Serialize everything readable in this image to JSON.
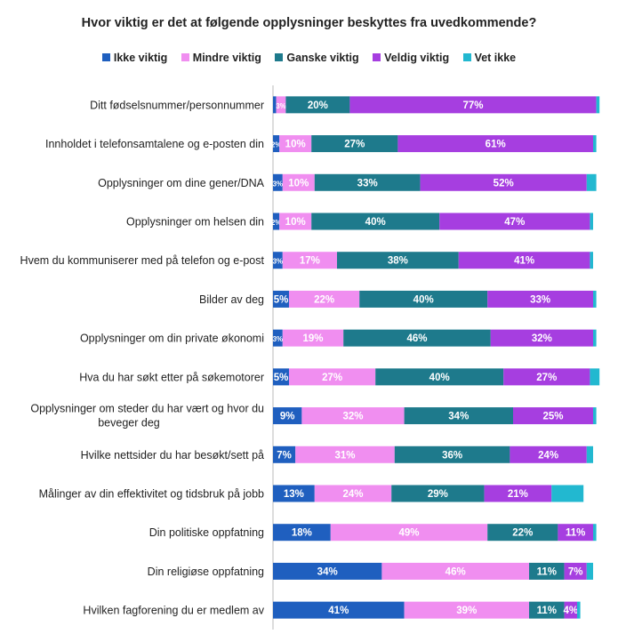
{
  "chart_data": {
    "type": "bar",
    "orientation": "horizontal",
    "stacked": true,
    "title": "Hvor viktig er det at følgende opplysninger beskyttes fra uvedkommende?",
    "legend_position": "top",
    "xlim": [
      0,
      100
    ],
    "categories": [
      "Ditt fødselsnummer/personnummer",
      "Innholdet i telefonsamtalene og e-posten din",
      "Opplysninger om dine gener/DNA",
      "Opplysninger om helsen din",
      "Hvem du kommuniserer med på telefon og e-post",
      "Bilder av deg",
      "Opplysninger om din private økonomi",
      "Hva du har søkt etter på søkemotorer",
      "Opplysninger om steder du har vært og hvor du beveger deg",
      "Hvilke nettsider du har besøkt/sett på",
      "Målinger av din effektivitet og tidsbruk på jobb",
      "Din politiske oppfatning",
      "Din religiøse oppfatning",
      "Hvilken fagforening du er medlem av"
    ],
    "series": [
      {
        "name": "Ikke viktig",
        "color": "#1f5fbf",
        "values": [
          1,
          2,
          3,
          2,
          3,
          5,
          3,
          5,
          9,
          7,
          13,
          18,
          34,
          41
        ]
      },
      {
        "name": "Mindre viktig",
        "color": "#f08ef0",
        "values": [
          3,
          10,
          10,
          10,
          17,
          22,
          19,
          27,
          32,
          31,
          24,
          49,
          46,
          39
        ]
      },
      {
        "name": "Ganske viktig",
        "color": "#1e7a8c",
        "values": [
          20,
          27,
          33,
          40,
          38,
          40,
          46,
          40,
          34,
          36,
          29,
          22,
          11,
          11
        ]
      },
      {
        "name": "Veldig viktig",
        "color": "#a63ee0",
        "values": [
          77,
          61,
          52,
          47,
          41,
          33,
          32,
          27,
          25,
          24,
          21,
          11,
          7,
          4
        ]
      },
      {
        "name": "Vet ikke",
        "color": "#22b8d0",
        "values": [
          1,
          1,
          3,
          1,
          1,
          1,
          1,
          3,
          1,
          2,
          10,
          1,
          2,
          1
        ]
      }
    ],
    "data_labels": [
      [
        "",
        "3%",
        "20%",
        "77%",
        ""
      ],
      [
        "2%",
        "10%",
        "27%",
        "61%",
        ""
      ],
      [
        "3%",
        "10%",
        "33%",
        "52%",
        ""
      ],
      [
        "2%",
        "10%",
        "40%",
        "47%",
        ""
      ],
      [
        "3%",
        "17%",
        "38%",
        "41%",
        ""
      ],
      [
        "5%",
        "22%",
        "40%",
        "33%",
        ""
      ],
      [
        "3%",
        "19%",
        "46%",
        "32%",
        ""
      ],
      [
        "5%",
        "27%",
        "40%",
        "27%",
        ""
      ],
      [
        "9%",
        "32%",
        "34%",
        "25%",
        ""
      ],
      [
        "7%",
        "31%",
        "36%",
        "24%",
        ""
      ],
      [
        "13%",
        "24%",
        "29%",
        "21%",
        ""
      ],
      [
        "18%",
        "49%",
        "22%",
        "11%",
        ""
      ],
      [
        "34%",
        "46%",
        "11%",
        "7%",
        ""
      ],
      [
        "41%",
        "39%",
        "11%",
        "4%",
        ""
      ]
    ]
  }
}
